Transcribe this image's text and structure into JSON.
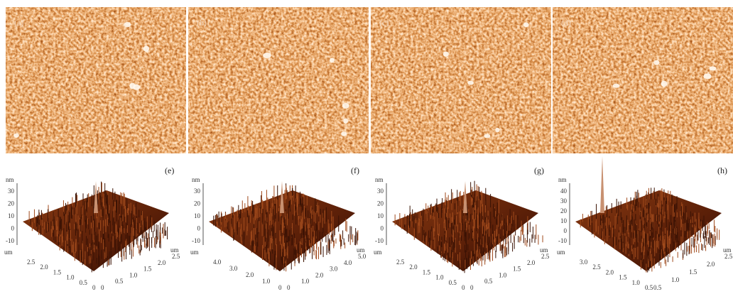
{
  "top_panels": [
    {
      "label": "(a)"
    },
    {
      "label": "(b)"
    },
    {
      "label": "(c)"
    },
    {
      "label": "(d)"
    }
  ],
  "bottom_panels": [
    {
      "label": "(e)",
      "z_unit": "nm",
      "z_ticks": [
        "30",
        "20",
        "10",
        "0",
        "-10"
      ],
      "xy_unit": "um",
      "left_ticks": [
        "2.5",
        "2.0",
        "1.5",
        "1.0",
        "0.5",
        "0"
      ],
      "right_ticks": [
        "0",
        "0.5",
        "1.0",
        "1.5",
        "2.0",
        "2.5"
      ]
    },
    {
      "label": "(f)",
      "z_unit": "nm",
      "z_ticks": [
        "30",
        "20",
        "10",
        "0",
        "-10"
      ],
      "xy_unit": "um",
      "left_ticks": [
        "4.0",
        "3.0",
        "2.0",
        "1.0",
        "0"
      ],
      "right_ticks": [
        "0",
        "1.0",
        "2.0",
        "3.0",
        "4.0",
        "5.0"
      ]
    },
    {
      "label": "(g)",
      "z_unit": "nm",
      "z_ticks": [
        "30",
        "20",
        "10",
        "0",
        "-10"
      ],
      "xy_unit": "um",
      "left_ticks": [
        "2.5",
        "2.0",
        "1.5",
        "1.0",
        "0.5",
        "0"
      ],
      "right_ticks": [
        "0",
        "0.5",
        "1.0",
        "1.5",
        "2.0",
        "2.5"
      ]
    },
    {
      "label": "(h)",
      "z_unit": "nm",
      "z_ticks": [
        "40",
        "30",
        "20",
        "10",
        "0",
        "-10"
      ],
      "xy_unit": "um",
      "left_ticks": [
        "3.0",
        "2.5",
        "2.0",
        "1.5",
        "1.0",
        "0.5"
      ],
      "right_ticks": [
        "0.5",
        "1.0",
        "1.5",
        "2.0",
        "2.5"
      ]
    }
  ]
}
